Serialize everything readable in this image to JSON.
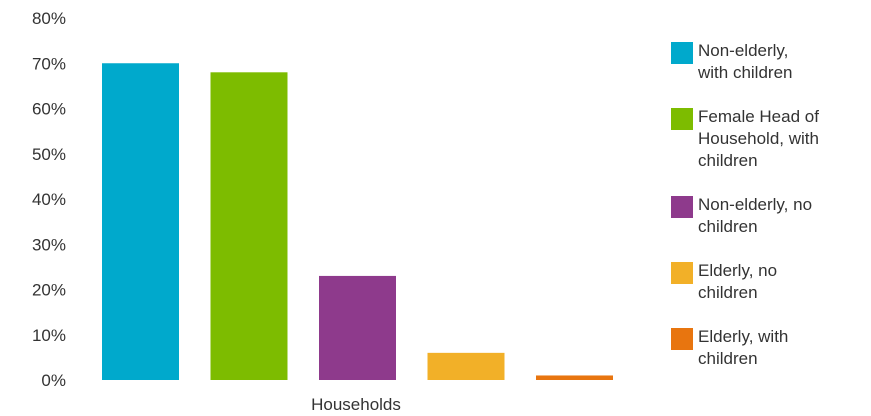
{
  "chart_data": {
    "type": "bar",
    "xlabel": "Households",
    "ylabel": "",
    "ylim": [
      0,
      80
    ],
    "yticks": [
      "0%",
      "10%",
      "20%",
      "30%",
      "40%",
      "50%",
      "60%",
      "70%",
      "80%"
    ],
    "grid": false,
    "legend_position": "right",
    "series": [
      {
        "name": "Non-elderly, with children",
        "legend_lines": [
          "Non-elderly,",
          "with children"
        ],
        "value": 70,
        "color": "#00a9cc"
      },
      {
        "name": "Female Head of Household, with children",
        "legend_lines": [
          "Female Head of",
          "Household, with",
          "children"
        ],
        "value": 68,
        "color": "#7dbc00"
      },
      {
        "name": "Non-elderly, no children",
        "legend_lines": [
          "Non-elderly, no",
          "children"
        ],
        "value": 23,
        "color": "#8e3a8c"
      },
      {
        "name": "Elderly, no children",
        "legend_lines": [
          "Elderly, no",
          "children"
        ],
        "value": 6,
        "color": "#f2b028"
      },
      {
        "name": "Elderly, with children",
        "legend_lines": [
          "Elderly, with",
          "children"
        ],
        "value": 1,
        "color": "#e8750f"
      }
    ]
  }
}
